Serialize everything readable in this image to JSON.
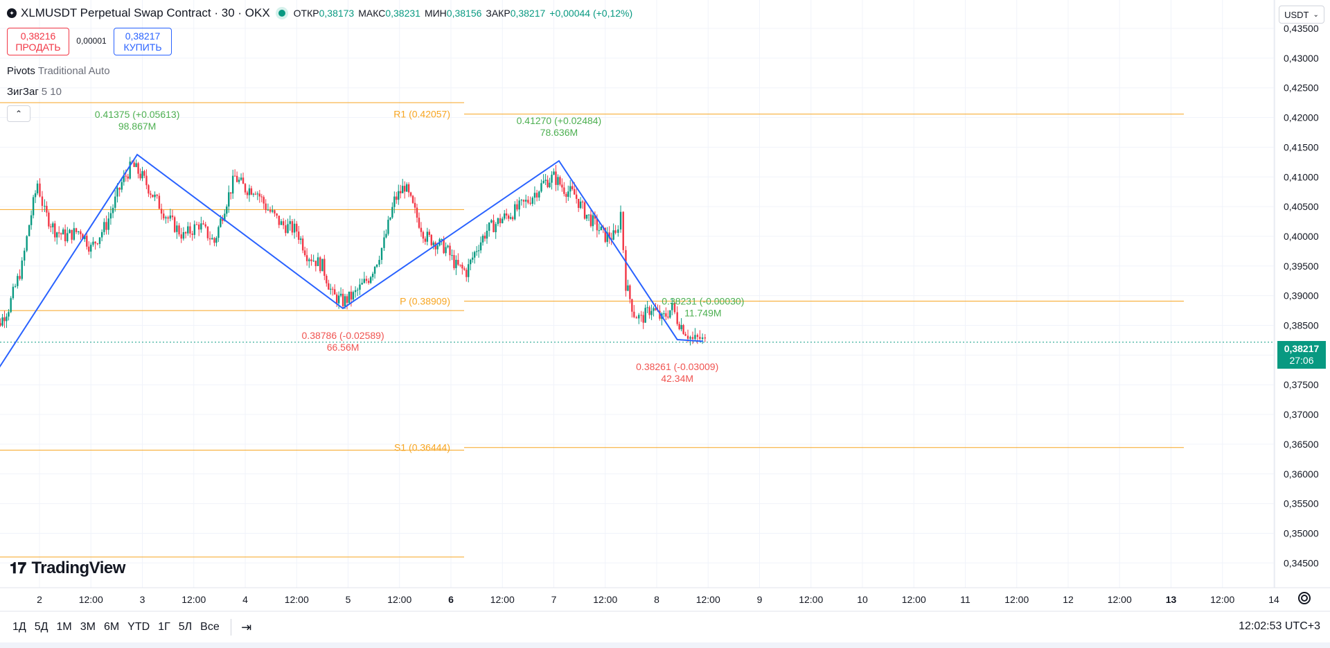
{
  "header": {
    "symbol_title": "XLMUSDT Perpetual Swap Contract · 30 · OKX",
    "ohlc": [
      {
        "label": "ОТКР",
        "value": "0,38173"
      },
      {
        "label": "МАКС",
        "value": "0,38231"
      },
      {
        "label": "МИН",
        "value": "0,38156"
      },
      {
        "label": "ЗАКР",
        "value": "0,38217"
      }
    ],
    "change": "+0,00044 (+0,12%)"
  },
  "trade": {
    "sell_price": "0,38216",
    "sell_label": "ПРОДАТЬ",
    "spread": "0,00001",
    "buy_price": "0,38217",
    "buy_label": "КУПИТЬ"
  },
  "indicators": {
    "pivots_name": "Pivots",
    "pivots_args": "Traditional Auto",
    "zigzag_name": "ЗигЗаг",
    "zigzag_args": "5 10"
  },
  "currency": {
    "label": "USDT"
  },
  "last_price": {
    "price": "0,38217",
    "countdown": "27:06"
  },
  "logo_text": "TradingView",
  "ranges": [
    "1Д",
    "5Д",
    "1М",
    "3М",
    "6М",
    "YTD",
    "1Г",
    "5Л",
    "Все"
  ],
  "clock": "12:02:53 UTC+3",
  "colors": {
    "up": "#089981",
    "down": "#f23645",
    "pivot": "#f7a521",
    "zigzag": "#2962ff",
    "zz_up": "#4caf50",
    "zz_down": "#f05350"
  },
  "chart_data": {
    "type": "candlestick",
    "y_ticks": [
      "0,43500",
      "0,43000",
      "0,42500",
      "0,42000",
      "0,41500",
      "0,41000",
      "0,40500",
      "0,40000",
      "0,39500",
      "0,39000",
      "0,38500",
      "0,38000",
      "0,37500",
      "0,37000",
      "0,36500",
      "0,36000",
      "0,35500",
      "0,35000",
      "0,34500"
    ],
    "y_tick_values": [
      0.435,
      0.43,
      0.425,
      0.42,
      0.415,
      0.41,
      0.405,
      0.4,
      0.395,
      0.39,
      0.385,
      0.38,
      0.375,
      0.37,
      0.365,
      0.36,
      0.355,
      0.35,
      0.345
    ],
    "ylim": [
      0.3425,
      0.4375
    ],
    "x_ticks": [
      {
        "label": "2",
        "day": 2,
        "hour": 0,
        "bold": false
      },
      {
        "label": "12:00",
        "day": 2,
        "hour": 12,
        "bold": false
      },
      {
        "label": "3",
        "day": 3,
        "hour": 0,
        "bold": false
      },
      {
        "label": "12:00",
        "day": 3,
        "hour": 12,
        "bold": false
      },
      {
        "label": "4",
        "day": 4,
        "hour": 0,
        "bold": false
      },
      {
        "label": "12:00",
        "day": 4,
        "hour": 12,
        "bold": false
      },
      {
        "label": "5",
        "day": 5,
        "hour": 0,
        "bold": false
      },
      {
        "label": "12:00",
        "day": 5,
        "hour": 12,
        "bold": false
      },
      {
        "label": "6",
        "day": 6,
        "hour": 0,
        "bold": true
      },
      {
        "label": "12:00",
        "day": 6,
        "hour": 12,
        "bold": false
      },
      {
        "label": "7",
        "day": 7,
        "hour": 0,
        "bold": false
      },
      {
        "label": "12:00",
        "day": 7,
        "hour": 12,
        "bold": false
      },
      {
        "label": "8",
        "day": 8,
        "hour": 0,
        "bold": false
      },
      {
        "label": "12:00",
        "day": 8,
        "hour": 12,
        "bold": false
      },
      {
        "label": "9",
        "day": 9,
        "hour": 0,
        "bold": false
      },
      {
        "label": "12:00",
        "day": 9,
        "hour": 12,
        "bold": false
      },
      {
        "label": "10",
        "day": 10,
        "hour": 0,
        "bold": false
      },
      {
        "label": "12:00",
        "day": 10,
        "hour": 12,
        "bold": false
      },
      {
        "label": "11",
        "day": 11,
        "hour": 0,
        "bold": false
      },
      {
        "label": "12:00",
        "day": 11,
        "hour": 12,
        "bold": false
      },
      {
        "label": "12",
        "day": 12,
        "hour": 0,
        "bold": false
      },
      {
        "label": "12:00",
        "day": 12,
        "hour": 12,
        "bold": false
      },
      {
        "label": "13",
        "day": 13,
        "hour": 0,
        "bold": true
      },
      {
        "label": "12:00",
        "day": 13,
        "hour": 12,
        "bold": false
      },
      {
        "label": "14",
        "day": 14,
        "hour": 0,
        "bold": false
      }
    ],
    "price_path": [
      [
        1.5,
        0.382
      ],
      [
        1.7,
        0.388
      ],
      [
        1.83,
        0.395
      ],
      [
        1.9,
        0.402
      ],
      [
        1.98,
        0.409
      ],
      [
        2.05,
        0.404
      ],
      [
        2.15,
        0.401
      ],
      [
        2.25,
        0.4
      ],
      [
        2.4,
        0.401
      ],
      [
        2.5,
        0.398
      ],
      [
        2.65,
        0.402
      ],
      [
        2.8,
        0.409
      ],
      [
        2.9,
        0.412
      ],
      [
        3.0,
        0.41
      ],
      [
        3.1,
        0.407
      ],
      [
        3.25,
        0.403
      ],
      [
        3.4,
        0.4
      ],
      [
        3.55,
        0.402
      ],
      [
        3.7,
        0.399
      ],
      [
        3.8,
        0.405
      ],
      [
        3.9,
        0.41
      ],
      [
        4.0,
        0.408
      ],
      [
        4.1,
        0.408
      ],
      [
        4.2,
        0.405
      ],
      [
        4.35,
        0.402
      ],
      [
        4.5,
        0.401
      ],
      [
        4.6,
        0.397
      ],
      [
        4.75,
        0.395
      ],
      [
        4.85,
        0.39
      ],
      [
        4.95,
        0.389
      ],
      [
        5.05,
        0.39
      ],
      [
        5.2,
        0.393
      ],
      [
        5.28,
        0.396
      ],
      [
        5.35,
        0.399
      ],
      [
        5.45,
        0.406
      ],
      [
        5.55,
        0.4085
      ],
      [
        5.65,
        0.404
      ],
      [
        5.75,
        0.4
      ],
      [
        5.85,
        0.399
      ],
      [
        5.95,
        0.398
      ],
      [
        6.05,
        0.395
      ],
      [
        6.15,
        0.394
      ],
      [
        6.25,
        0.398
      ],
      [
        6.35,
        0.401
      ],
      [
        6.5,
        0.403
      ],
      [
        6.6,
        0.404
      ],
      [
        6.75,
        0.406
      ],
      [
        6.9,
        0.409
      ],
      [
        7.0,
        0.41
      ],
      [
        7.1,
        0.408
      ],
      [
        7.2,
        0.407
      ],
      [
        7.3,
        0.404
      ],
      [
        7.4,
        0.402
      ],
      [
        7.5,
        0.4
      ],
      [
        7.6,
        0.4
      ],
      [
        7.65,
        0.404
      ],
      [
        7.7,
        0.392
      ],
      [
        7.78,
        0.387
      ],
      [
        7.85,
        0.386
      ],
      [
        7.95,
        0.388
      ],
      [
        8.05,
        0.386
      ],
      [
        8.15,
        0.388
      ],
      [
        8.2,
        0.386
      ],
      [
        8.28,
        0.384
      ],
      [
        8.35,
        0.3825
      ],
      [
        8.42,
        0.3828
      ],
      [
        8.47,
        0.38217
      ]
    ],
    "zigzag": [
      {
        "day": 1.5,
        "price": 0.375
      },
      {
        "day": 2.95,
        "price": 0.41375,
        "label": "0.41375 (+0.05613)",
        "vol": "98.867M",
        "dir": "up"
      },
      {
        "day": 4.95,
        "price": 0.38786,
        "label": "0.38786 (-0.02589)",
        "vol": "66.56M",
        "dir": "down"
      },
      {
        "day": 7.05,
        "price": 0.4127,
        "label": "0.41270 (+0.02484)",
        "vol": "78.636M",
        "dir": "up"
      },
      {
        "day": 8.2,
        "price": 0.38261,
        "label": "0.38261 (-0.03009)",
        "vol": "42.34M",
        "dir": "down"
      },
      {
        "day": 8.45,
        "price": 0.38231,
        "label": "0.38231 (-0.00030)",
        "vol": "11.749M",
        "dir": "up"
      }
    ],
    "pivots_left": [
      {
        "price": 0.4225
      },
      {
        "price": 0.4045
      },
      {
        "price": 0.3875
      },
      {
        "price": 0.364
      },
      {
        "price": 0.346
      }
    ],
    "pivots_right": [
      {
        "name": "R1",
        "price": 0.42057,
        "label": "R1 (0.42057)"
      },
      {
        "name": "P",
        "price": 0.38909,
        "label": "P (0.38909)"
      },
      {
        "name": "S1",
        "price": 0.36444,
        "label": "S1 (0.36444)"
      }
    ],
    "current_price": 0.38217
  }
}
